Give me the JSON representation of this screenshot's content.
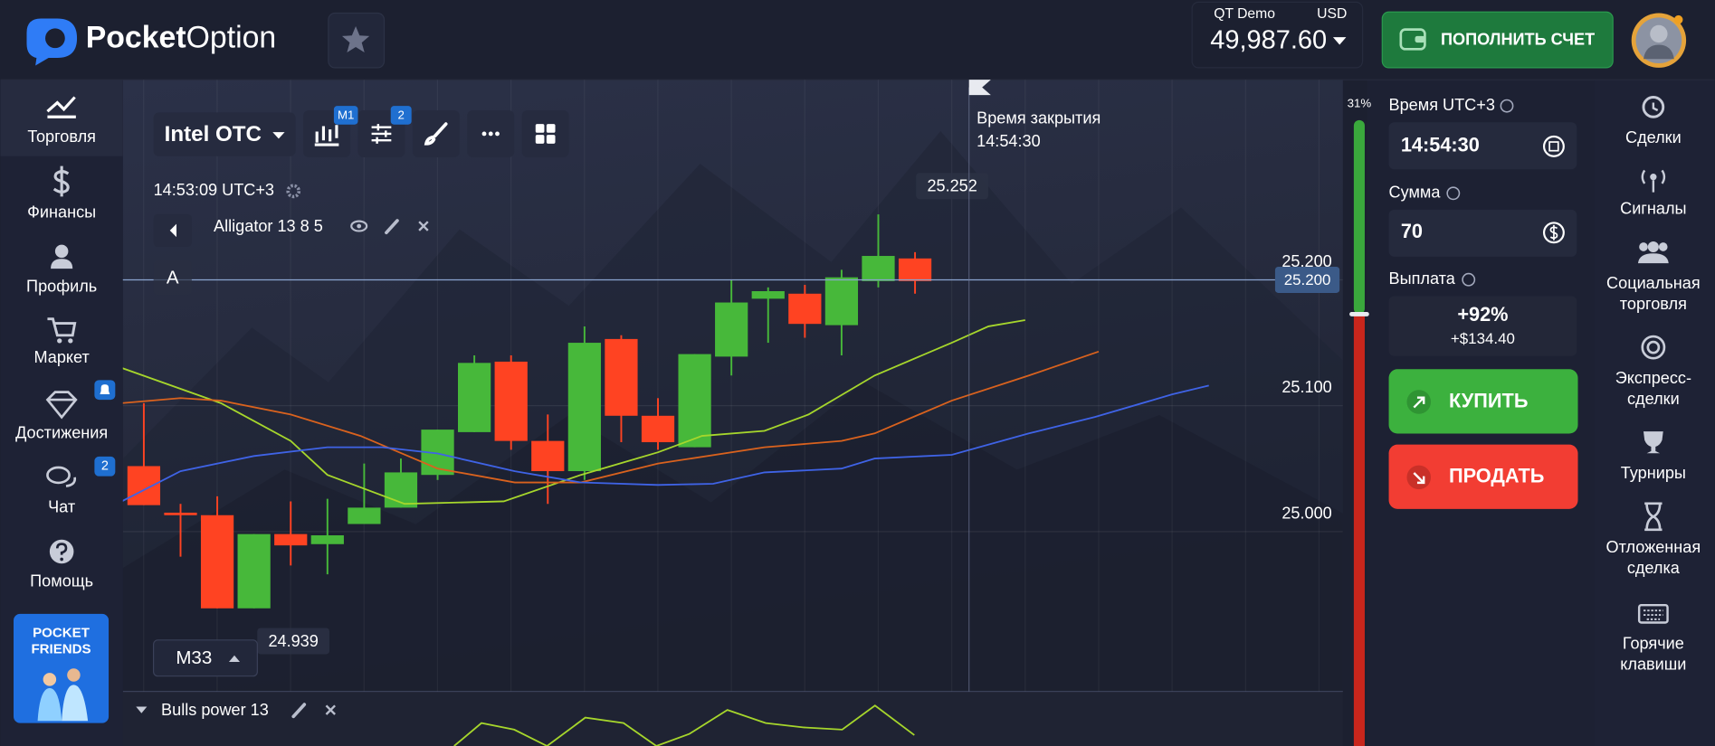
{
  "header": {
    "logo_bold": "Pocket",
    "logo_light": "Option",
    "account_type": "QT Demo",
    "currency": "USD",
    "balance": "49,987.60",
    "deposit_button": "ПОПОЛНИТЬ СЧЕТ"
  },
  "left_nav": [
    {
      "label": "Торговля"
    },
    {
      "label": "Финансы"
    },
    {
      "label": "Профиль"
    },
    {
      "label": "Маркет"
    },
    {
      "label": "Достижения"
    },
    {
      "label": "Чат",
      "badge": "2"
    },
    {
      "label": "Помощь"
    }
  ],
  "promo": [
    "POCKET",
    "FRIENDS"
  ],
  "toolbar": {
    "asset": "Intel OTC",
    "timeframe_badge": "M1",
    "indicators_badge": "2"
  },
  "chart_time": "14:53:09 UTC+3",
  "indicator": "Alligator 13 8 5",
  "drawing_label": "A",
  "timeframe": "M33",
  "closing": {
    "label": "Время закрытия",
    "time": "14:54:30"
  },
  "sub_indicator": "Bulls power 13",
  "sentiment": {
    "value": 31,
    "label": "31%"
  },
  "chart_data": {
    "type": "candlestick",
    "xlim": [
      -0.57,
      32.65
    ],
    "ylim": [
      24.873,
      25.359
    ],
    "yticks": [
      {
        "value": 25,
        "label": "25.000"
      },
      {
        "value": 25.1,
        "label": "25.100"
      },
      {
        "value": 25.2,
        "label": "25.200"
      }
    ],
    "up_color": "#47b83a",
    "down_color": "#ff4322",
    "open": [
      25.052,
      25.015,
      25.013,
      24.939,
      24.998,
      24.99,
      25.006,
      25.019,
      25.045,
      25.079,
      25.135,
      25.072,
      25.048,
      25.153,
      25.092,
      25.067,
      25.139,
      25.185,
      25.189,
      25.164,
      25.199,
      25.217
    ],
    "high": [
      25.102,
      25.022,
      25.028,
      24.998,
      25.024,
      25.026,
      25.054,
      25.058,
      25.081,
      25.14,
      25.14,
      25.093,
      25.163,
      25.156,
      25.106,
      25.141,
      25.2,
      25.194,
      25.196,
      25.208,
      25.252,
      25.222
    ],
    "low": [
      25.021,
      24.98,
      24.939,
      24.939,
      24.973,
      24.966,
      25.006,
      25.019,
      25.041,
      25.079,
      25.065,
      25.022,
      25.041,
      25.071,
      25.065,
      25.067,
      25.124,
      25.15,
      25.154,
      25.14,
      25.194,
      25.189
    ],
    "close": [
      25.021,
      25.013,
      24.939,
      24.998,
      24.989,
      24.997,
      25.019,
      25.047,
      25.081,
      25.134,
      25.072,
      25.048,
      25.15,
      25.092,
      25.071,
      25.141,
      25.182,
      25.191,
      25.165,
      25.202,
      25.219,
      25.199
    ],
    "series": [
      {
        "color": "#a6d62c",
        "x": [
          -0.6,
          2.1,
          4,
          5,
          7.1,
          9.8,
          11.9,
          14,
          15.2,
          16.9,
          18.1,
          19.9,
          22,
          23,
          24
        ],
        "values": [
          25.13,
          25.102,
          25.072,
          25.045,
          25.022,
          25.024,
          25.045,
          25.063,
          25.076,
          25.08,
          25.093,
          25.124,
          25.15,
          25.163,
          25.168
        ]
      },
      {
        "color": "#d9621e",
        "x": [
          -0.6,
          1,
          2.1,
          4,
          5.9,
          8,
          10.1,
          11.9,
          14,
          16.9,
          19,
          19.9,
          22,
          24.1,
          26
        ],
        "values": [
          25.102,
          25.106,
          25.104,
          25.093,
          25.076,
          25.05,
          25.039,
          25.039,
          25.054,
          25.067,
          25.072,
          25.078,
          25.104,
          25.124,
          25.143
        ]
      },
      {
        "color": "#3f63e6",
        "x": [
          -0.6,
          1,
          3,
          5,
          6.5,
          8,
          10.1,
          11.9,
          14,
          15.5,
          16.9,
          19,
          19.9,
          22,
          24.1,
          25.9,
          28,
          29
        ],
        "values": [
          25.024,
          25.048,
          25.06,
          25.067,
          25.067,
          25.062,
          25.048,
          25.039,
          25.037,
          25.038,
          25.047,
          25.05,
          25.058,
          25.061,
          25.078,
          25.091,
          25.109,
          25.116
        ]
      }
    ],
    "current_price": {
      "value": 25.2,
      "label": "25.200"
    },
    "extremes": [
      {
        "value": 25.252,
        "label": "25.252"
      },
      {
        "value": 24.939,
        "label": "24.939"
      }
    ]
  },
  "trade_panel": {
    "time_label": "Время UTC+3",
    "time": "14:54:30",
    "amount_label": "Сумма",
    "amount": "70",
    "payout_label": "Выплата",
    "payout_percent": "+92%",
    "payout_amount": "+$134.40",
    "buy": "КУПИТЬ",
    "sell": "ПРОДАТЬ"
  },
  "right_nav": [
    [
      "Сделки"
    ],
    [
      "Сигналы"
    ],
    [
      "Социальная",
      "торговля"
    ],
    [
      "Экспресс-",
      "сделки"
    ],
    [
      "Турниры"
    ],
    [
      "Отложенная",
      "сделка"
    ],
    [
      "Горячие",
      "клавиши"
    ]
  ]
}
